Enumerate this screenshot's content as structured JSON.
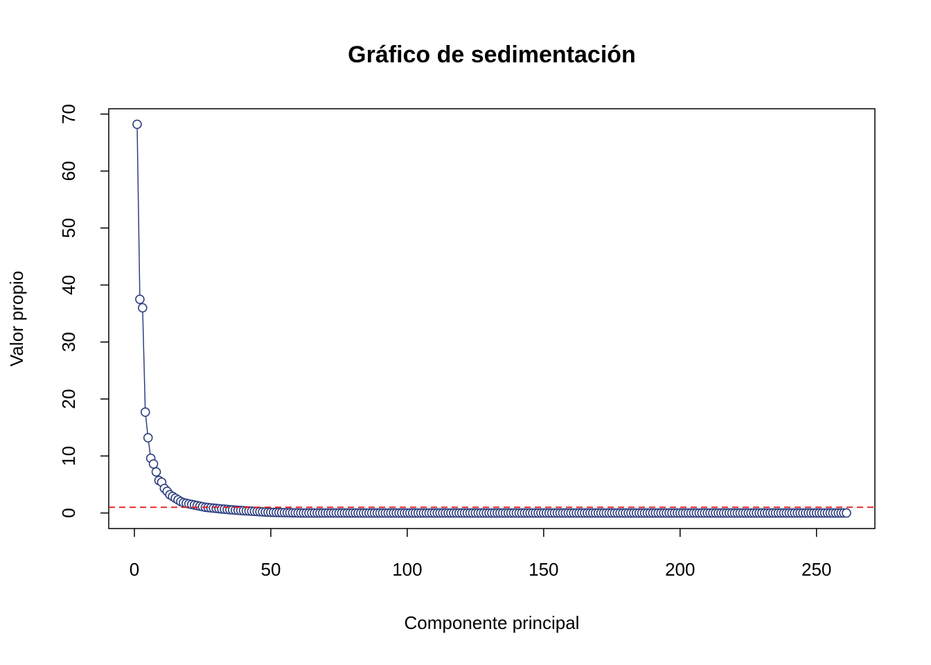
{
  "chart_data": {
    "type": "scatter",
    "title": "Gráfico de sedimentación",
    "x_label": "Componente principal",
    "y_label": "Valor propio",
    "color": "#2e3f7f",
    "reference_line": {
      "value": 1,
      "color": "#e31a1c"
    },
    "xlim": [
      -9.4,
      271.4
    ],
    "xticks": [
      0,
      50,
      100,
      150,
      200,
      250
    ],
    "ylim": [
      -2.73,
      70.93
    ],
    "yticks": [
      0,
      10,
      20,
      30,
      40,
      50,
      60,
      70
    ],
    "x": [
      1,
      2,
      3,
      4,
      5,
      6,
      7,
      8,
      9,
      10,
      11,
      12,
      13,
      14,
      15,
      16,
      17,
      18,
      19,
      20,
      21,
      22,
      23,
      24,
      25,
      26,
      27,
      28,
      29,
      30,
      31,
      32,
      33,
      34,
      35,
      36,
      37,
      38,
      39,
      40,
      41,
      42,
      43,
      44,
      45,
      46,
      47,
      48,
      49,
      50,
      51,
      52,
      53,
      54,
      55,
      56,
      57,
      58,
      59,
      60,
      61,
      62,
      63,
      64,
      65,
      66,
      67,
      68,
      69,
      70,
      71,
      72,
      73,
      74,
      75,
      76,
      77,
      78,
      79,
      80,
      81,
      82,
      83,
      84,
      85,
      86,
      87,
      88,
      89,
      90,
      91,
      92,
      93,
      94,
      95,
      96,
      97,
      98,
      99,
      100,
      101,
      102,
      103,
      104,
      105,
      106,
      107,
      108,
      109,
      110,
      111,
      112,
      113,
      114,
      115,
      116,
      117,
      118,
      119,
      120,
      121,
      122,
      123,
      124,
      125,
      126,
      127,
      128,
      129,
      130,
      131,
      132,
      133,
      134,
      135,
      136,
      137,
      138,
      139,
      140,
      141,
      142,
      143,
      144,
      145,
      146,
      147,
      148,
      149,
      150,
      151,
      152,
      153,
      154,
      155,
      156,
      157,
      158,
      159,
      160,
      161,
      162,
      163,
      164,
      165,
      166,
      167,
      168,
      169,
      170,
      171,
      172,
      173,
      174,
      175,
      176,
      177,
      178,
      179,
      180,
      181,
      182,
      183,
      184,
      185,
      186,
      187,
      188,
      189,
      190,
      191,
      192,
      193,
      194,
      195,
      196,
      197,
      198,
      199,
      200,
      201,
      202,
      203,
      204,
      205,
      206,
      207,
      208,
      209,
      210,
      211,
      212,
      213,
      214,
      215,
      216,
      217,
      218,
      219,
      220,
      221,
      222,
      223,
      224,
      225,
      226,
      227,
      228,
      229,
      230,
      231,
      232,
      233,
      234,
      235,
      236,
      237,
      238,
      239,
      240,
      241,
      242,
      243,
      244,
      245,
      246,
      247,
      248,
      249,
      250,
      251,
      252,
      253,
      254,
      255,
      256,
      257,
      258,
      259,
      260,
      261
    ],
    "values": [
      68.2,
      37.5,
      36.0,
      17.7,
      13.2,
      9.6,
      8.6,
      7.2,
      5.7,
      5.4,
      4.3,
      3.8,
      3.2,
      2.9,
      2.6,
      2.3,
      2.0,
      1.8,
      1.7,
      1.6,
      1.5,
      1.4,
      1.3,
      1.2,
      1.1,
      1.0,
      0.95,
      0.9,
      0.85,
      0.8,
      0.75,
      0.7,
      0.66,
      0.62,
      0.58,
      0.54,
      0.5,
      0.47,
      0.44,
      0.41,
      0.38,
      0.35,
      0.32,
      0.29,
      0.26,
      0.23,
      0.2,
      0.17,
      0.14,
      0.12,
      0.1,
      0.09,
      0.08,
      0.07,
      0.06,
      0.05,
      0.04,
      0.03,
      0.02,
      0.01,
      0,
      0,
      0,
      0,
      0,
      0,
      0,
      0,
      0,
      0,
      0,
      0,
      0,
      0,
      0,
      0,
      0,
      0,
      0,
      0,
      0,
      0,
      0,
      0,
      0,
      0,
      0,
      0,
      0,
      0,
      0,
      0,
      0,
      0,
      0,
      0,
      0,
      0,
      0,
      0,
      0,
      0,
      0,
      0,
      0,
      0,
      0,
      0,
      0,
      0,
      0,
      0,
      0,
      0,
      0,
      0,
      0,
      0,
      0,
      0,
      0,
      0,
      0,
      0,
      0,
      0,
      0,
      0,
      0,
      0,
      0,
      0,
      0,
      0,
      0,
      0,
      0,
      0,
      0,
      0,
      0,
      0,
      0,
      0,
      0,
      0,
      0,
      0,
      0,
      0,
      0,
      0,
      0,
      0,
      0,
      0,
      0,
      0,
      0,
      0,
      0,
      0,
      0,
      0,
      0,
      0,
      0,
      0,
      0,
      0,
      0,
      0,
      0,
      0,
      0,
      0,
      0,
      0,
      0,
      0,
      0,
      0,
      0,
      0,
      0,
      0,
      0,
      0,
      0,
      0,
      0,
      0,
      0,
      0,
      0,
      0,
      0,
      0,
      0,
      0,
      0,
      0,
      0,
      0,
      0,
      0,
      0,
      0,
      0,
      0,
      0,
      0,
      0,
      0,
      0,
      0,
      0,
      0,
      0,
      0,
      0,
      0,
      0,
      0,
      0,
      0,
      0,
      0,
      0,
      0,
      0,
      0,
      0,
      0,
      0,
      0,
      0,
      0,
      0,
      0,
      0,
      0,
      0,
      0,
      0,
      0,
      0,
      0,
      0,
      0,
      0,
      0,
      0,
      0,
      0,
      0,
      0,
      0,
      0,
      0,
      0
    ]
  }
}
